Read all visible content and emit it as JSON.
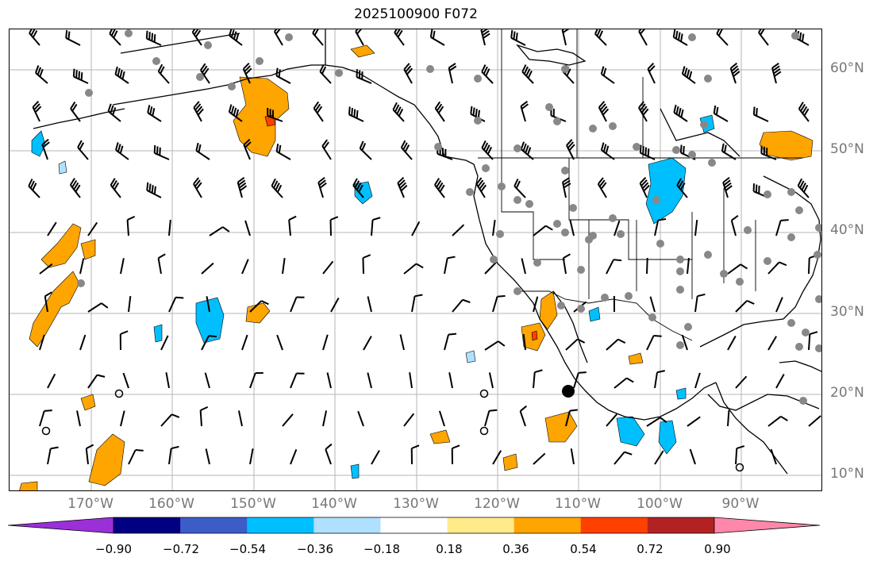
{
  "title": "2025100900 F072",
  "lat_labels": [
    "60°N",
    "50°N",
    "40°N",
    "30°N",
    "20°N",
    "10°N"
  ],
  "lon_labels": [
    "170°W",
    "160°W",
    "150°W",
    "140°W",
    "130°W",
    "120°W",
    "110°W",
    "100°W",
    "90°W"
  ],
  "colorbar": {
    "ticks": [
      "−0.90",
      "−0.72",
      "−0.54",
      "−0.36",
      "−0.18",
      "0.18",
      "0.36",
      "0.54",
      "0.72",
      "0.90"
    ],
    "colors": [
      "#9b30d9",
      "#000080",
      "#3c5dc8",
      "#00bfff",
      "#b0e0ff",
      "#ffffff",
      "#ffeb8a",
      "#ffa500",
      "#ff4000",
      "#b22222",
      "#ff88aa"
    ]
  },
  "fill_colors": {
    "orange": "#ffa500",
    "red": "#ff4000",
    "blue": "#00bfff",
    "lightblue": "#b0e0ff",
    "yellow": "#ffeb8a"
  },
  "station_color": "#888888",
  "legend_map": {
    "wind_barbs": "barb-glyphs",
    "stations": "gray-dots",
    "contours": "shaded-anomaly"
  }
}
